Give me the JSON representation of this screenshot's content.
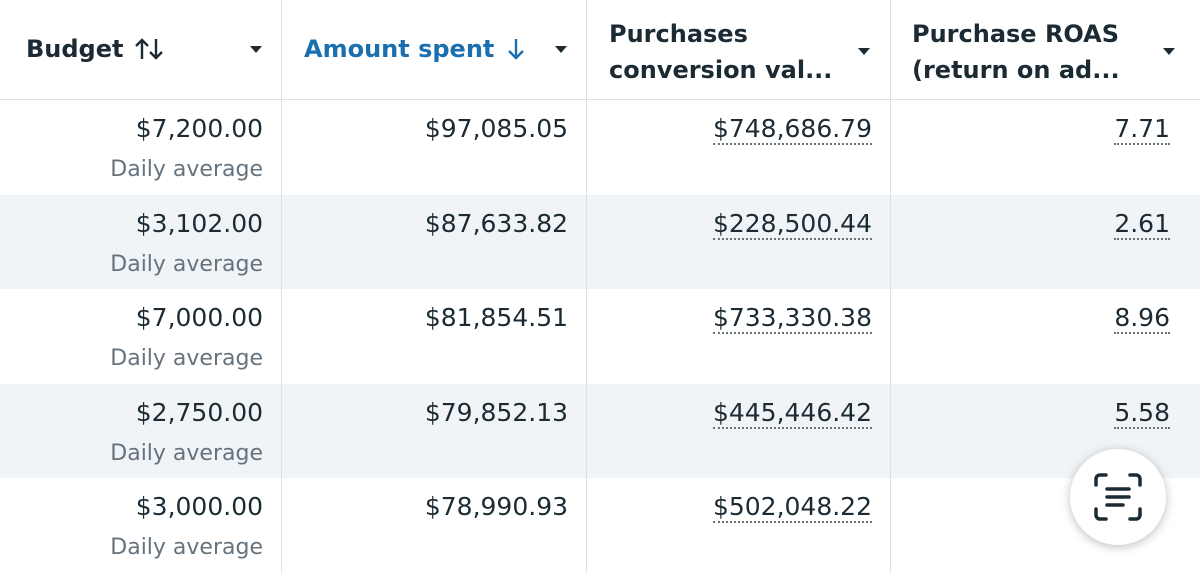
{
  "table": {
    "columns": [
      "Budget",
      "Amount spent",
      "Purchases conversion val...",
      "Purchase ROAS (return on ad..."
    ],
    "rows": [
      {
        "budget": "$7,200.00",
        "budget_note": "Daily average",
        "amount_spent": "$97,085.05",
        "conversion_value": "$748,686.79",
        "roas": "7.71"
      },
      {
        "budget": "$3,102.00",
        "budget_note": "Daily average",
        "amount_spent": "$87,633.82",
        "conversion_value": "$228,500.44",
        "roas": "2.61"
      },
      {
        "budget": "$7,000.00",
        "budget_note": "Daily average",
        "amount_spent": "$81,854.51",
        "conversion_value": "$733,330.38",
        "roas": "8.96"
      },
      {
        "budget": "$2,750.00",
        "budget_note": "Daily average",
        "amount_spent": "$79,852.13",
        "conversion_value": "$445,446.42",
        "roas": "5.58"
      },
      {
        "budget": "$3,000.00",
        "budget_note": "Daily average",
        "amount_spent": "$78,990.93",
        "conversion_value": "$502,048.22"
      }
    ]
  }
}
